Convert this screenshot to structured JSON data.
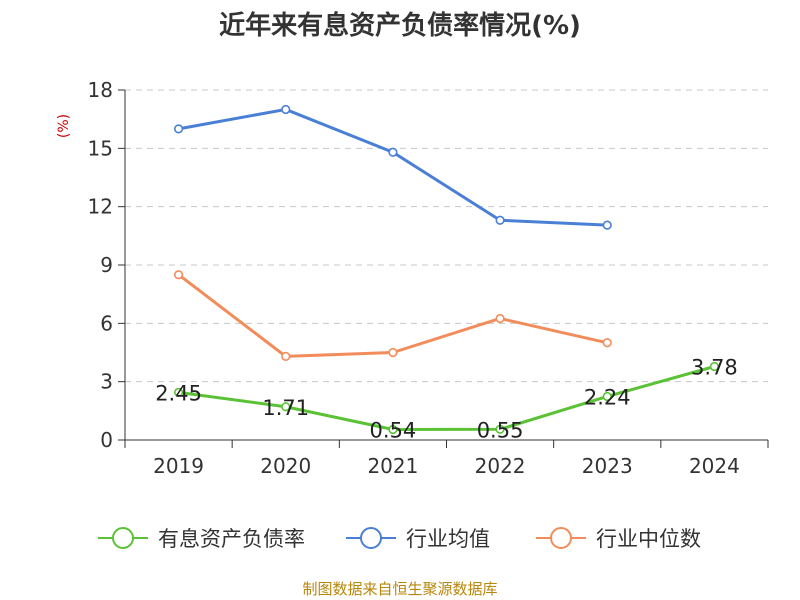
{
  "chart_data": {
    "type": "line",
    "title": "近年来有息资产负债率情况(%)",
    "ylabel": "(%)",
    "xlabel": "",
    "ylim": [
      0,
      18
    ],
    "yticks": [
      0,
      3,
      6,
      9,
      12,
      15,
      18
    ],
    "categories": [
      "2019",
      "2020",
      "2021",
      "2022",
      "2023",
      "2024"
    ],
    "grid": true,
    "legend_position": "bottom",
    "series": [
      {
        "name": "有息资产负债率",
        "color": "#5bc236",
        "values": [
          2.45,
          1.71,
          0.54,
          0.55,
          2.24,
          3.78
        ],
        "show_labels": true
      },
      {
        "name": "行业均值",
        "color": "#4a7fd6",
        "values": [
          16.0,
          17.0,
          14.8,
          11.3,
          11.05,
          null
        ],
        "show_labels": false
      },
      {
        "name": "行业中位数",
        "color": "#f28c5a",
        "values": [
          8.5,
          4.3,
          4.5,
          6.25,
          5.0,
          null
        ],
        "show_labels": false
      }
    ],
    "source": "制图数据来自恒生聚源数据库"
  }
}
